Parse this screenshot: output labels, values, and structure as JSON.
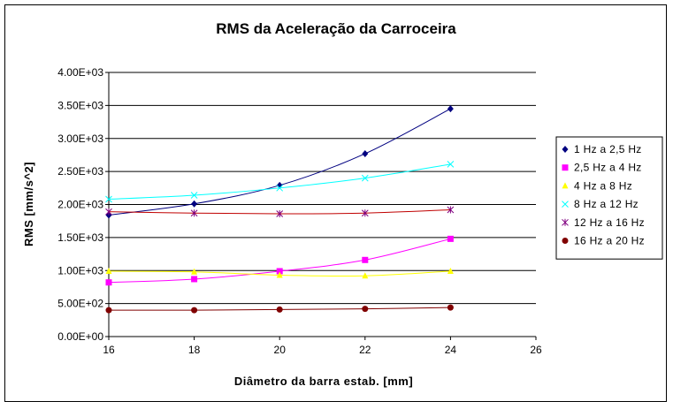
{
  "chart_data": {
    "type": "line",
    "title": "RMS da Aceleração da Carroceira",
    "xlabel": "Diâmetro da barra estab. [mm]",
    "ylabel": "RMS [mm/s^2]",
    "x": [
      16,
      18,
      20,
      22,
      24
    ],
    "xlim": [
      16,
      26
    ],
    "xticks": [
      "16",
      "18",
      "20",
      "22",
      "24",
      "26"
    ],
    "ylim": [
      0,
      4000
    ],
    "yticks": [
      "0.00E+00",
      "5.00E+02",
      "1.00E+03",
      "1.50E+03",
      "2.00E+03",
      "2.50E+03",
      "3.00E+03",
      "3.50E+03",
      "4.00E+03"
    ],
    "grid": "horizontal",
    "legend_position": "right",
    "series": [
      {
        "name": "1 Hz a 2,5 Hz",
        "values": [
          1840,
          2010,
          2290,
          2770,
          3450
        ],
        "color": "#000080",
        "marker": "diamond"
      },
      {
        "name": "2,5 Hz a 4 Hz",
        "values": [
          820,
          870,
          990,
          1160,
          1480
        ],
        "color": "#ff00ff",
        "marker": "square"
      },
      {
        "name": "4 Hz a 8 Hz",
        "values": [
          990,
          980,
          930,
          920,
          990
        ],
        "color": "#ffff00",
        "marker": "triangle"
      },
      {
        "name": "8 Hz a 12 Hz",
        "values": [
          2080,
          2140,
          2250,
          2400,
          2610
        ],
        "color": "#00ffff",
        "marker": "x"
      },
      {
        "name": "12 Hz a 16 Hz",
        "values": [
          1890,
          1870,
          1860,
          1870,
          1920
        ],
        "color": "#800080",
        "marker": "star",
        "line_color": "#c00000"
      },
      {
        "name": "16 Hz a 20 Hz",
        "values": [
          400,
          400,
          410,
          420,
          440
        ],
        "color": "#800000",
        "marker": "circle"
      }
    ]
  }
}
